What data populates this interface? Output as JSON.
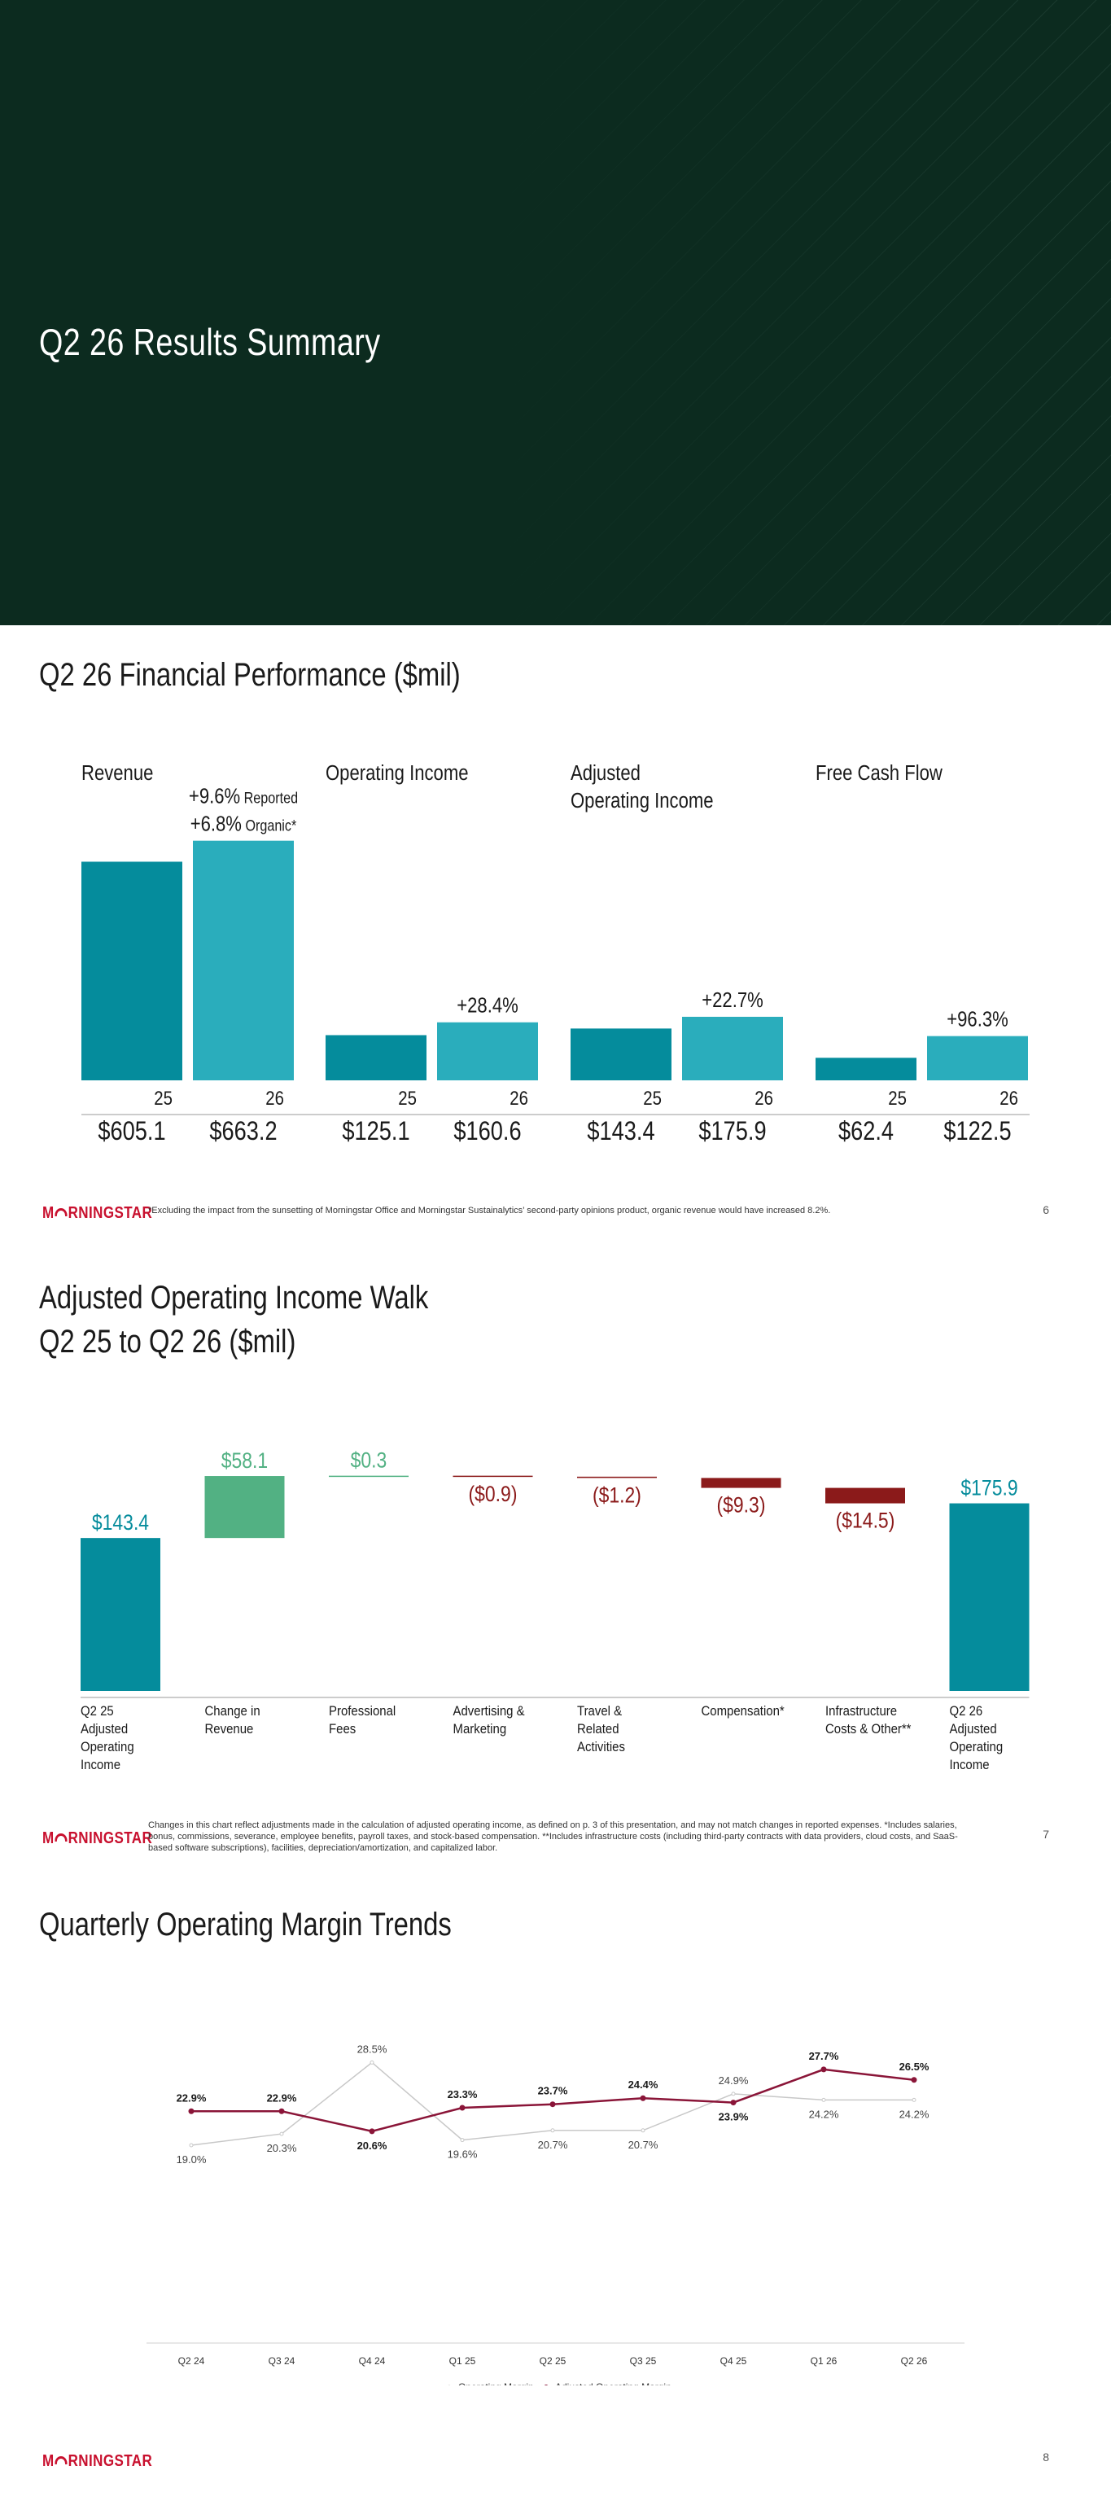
{
  "slide1": {
    "title": "Q2 26 Results Summary"
  },
  "slide2": {
    "title": "Q2 26 Financial Performance ($mil)",
    "logo": "MORNINGSTAR",
    "footnote": "*Excluding the impact from the sunsetting of Morningstar Office and Morningstar Sustainalytics’ second-party opinions product, organic revenue would have increased 8.2%.",
    "page": "6"
  },
  "slide3": {
    "title_line1": "Adjusted Operating Income Walk",
    "title_line2": "Q2 25 to Q2 26",
    "title_unit": "($mil)",
    "logo": "MORNINGSTAR",
    "footnote": "Changes in this chart reflect adjustments made in the calculation of adjusted operating income, as defined on p. 3 of this presentation, and may not match changes in reported expenses. *Includes salaries, bonus, commissions, severance, employee benefits, payroll taxes, and stock-based compensation. **Includes infrastructure costs (including third-party contracts with data providers, cloud costs, and SaaS-based software subscriptions), facilities, depreciation/amortization, and capitalized labor.",
    "page": "7"
  },
  "slide4": {
    "title": "Quarterly Operating Margin Trends",
    "logo": "MORNINGSTAR",
    "page": "8"
  },
  "colors": {
    "teal_dark": "#058c9c",
    "teal_light": "#2aadbc",
    "green": "#52b183",
    "red": "#8b1a1a",
    "maroon": "#8a1538",
    "gray_line": "#c8c8c8"
  },
  "chart_data": [
    {
      "type": "bar",
      "title": "Q2 26 Financial Performance ($mil)",
      "panels": [
        {
          "name": "Revenue",
          "categories": [
            "25",
            "26"
          ],
          "values": [
            605.1,
            663.2
          ],
          "value_labels": [
            "$605.1",
            "$663.2"
          ],
          "growth": [
            {
              "value": "+9.6%",
              "note": "Reported"
            },
            {
              "value": "+6.8%",
              "note": "Organic*"
            }
          ]
        },
        {
          "name": "Operating Income",
          "categories": [
            "25",
            "26"
          ],
          "values": [
            125.1,
            160.6
          ],
          "value_labels": [
            "$125.1",
            "$160.6"
          ],
          "growth": [
            {
              "value": "+28.4%",
              "note": ""
            }
          ]
        },
        {
          "name": "Adjusted Operating Income",
          "name_lines": [
            "Adjusted",
            "Operating Income"
          ],
          "categories": [
            "25",
            "26"
          ],
          "values": [
            143.4,
            175.9
          ],
          "value_labels": [
            "$143.4",
            "$175.9"
          ],
          "growth": [
            {
              "value": "+22.7%",
              "note": ""
            }
          ]
        },
        {
          "name": "Free Cash Flow",
          "categories": [
            "25",
            "26"
          ],
          "values": [
            62.4,
            122.5
          ],
          "value_labels": [
            "$62.4",
            "$122.5"
          ],
          "growth": [
            {
              "value": "+96.3%",
              "note": ""
            }
          ]
        }
      ]
    },
    {
      "type": "bar",
      "subtype": "waterfall",
      "title": "Adjusted Operating Income Walk Q2 25 to Q2 26 ($mil)",
      "categories": [
        "Q2 25 Adjusted Operating Income",
        "Change in Revenue",
        "Professional Fees",
        "Advertising & Marketing",
        "Travel & Related Activities",
        "Compensation*",
        "Infrastructure Costs & Other**",
        "Q2 26 Adjusted Operating Income"
      ],
      "category_lines": [
        [
          "Q2 25",
          "Adjusted",
          "Operating",
          "Income"
        ],
        [
          "Change in",
          "Revenue"
        ],
        [
          "Professional",
          "Fees"
        ],
        [
          "Advertising &",
          "Marketing"
        ],
        [
          "Travel &",
          "Related",
          "Activities"
        ],
        [
          "Compensation*"
        ],
        [
          "Infrastructure",
          "Costs & Other**"
        ],
        [
          "Q2 26",
          "Adjusted",
          "Operating",
          "Income"
        ]
      ],
      "values": [
        143.4,
        58.1,
        0.3,
        -0.9,
        -1.2,
        -9.3,
        -14.5,
        175.9
      ],
      "kinds": [
        "total",
        "delta",
        "delta",
        "delta",
        "delta",
        "delta",
        "delta",
        "total"
      ],
      "value_labels": [
        "$143.4",
        "$58.1",
        "$0.3",
        "($0.9)",
        "($1.2)",
        "($9.3)",
        "($14.5)",
        "$175.9"
      ]
    },
    {
      "type": "line",
      "title": "Quarterly Operating Margin Trends",
      "categories": [
        "Q2 24",
        "Q3 24",
        "Q4 24",
        "Q1 25",
        "Q2 25",
        "Q3 25",
        "Q4 25",
        "Q1 26",
        "Q2 26"
      ],
      "series": [
        {
          "name": "Operating Margin",
          "values": [
            19.0,
            20.3,
            28.5,
            19.6,
            20.7,
            20.7,
            24.9,
            24.2,
            24.2
          ],
          "labels": [
            "19.0%",
            "20.3%",
            "28.5%",
            "19.6%",
            "20.7%",
            "20.7%",
            "24.9%",
            "24.2%",
            "24.2%"
          ]
        },
        {
          "name": "Adjusted Operating Margin",
          "values": [
            22.9,
            22.9,
            20.6,
            23.3,
            23.7,
            24.4,
            23.9,
            27.7,
            26.5
          ],
          "labels": [
            "22.9%",
            "22.9%",
            "20.6%",
            "23.3%",
            "23.7%",
            "24.4%",
            "23.9%",
            "27.7%",
            "26.5%"
          ]
        }
      ],
      "legend": "bottom-center"
    }
  ]
}
